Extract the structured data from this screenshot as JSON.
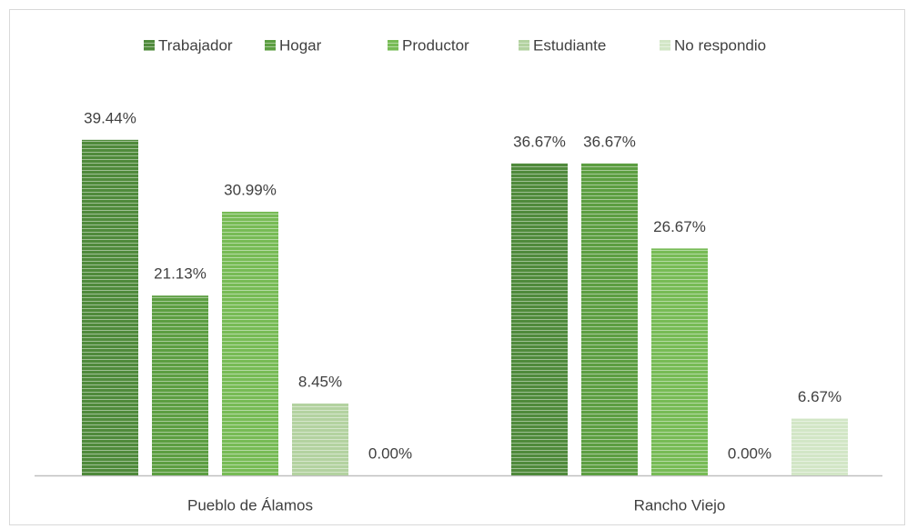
{
  "chart_data": {
    "type": "bar",
    "categories": [
      "Pueblo de Álamos",
      "Rancho Viejo"
    ],
    "series": [
      {
        "name": "Trabajador",
        "color": "#4f8a3b",
        "values": [
          39.44,
          36.67
        ],
        "value_labels": [
          "39.44%",
          "36.67%"
        ]
      },
      {
        "name": "Hogar",
        "color": "#5c9e41",
        "values": [
          21.13,
          36.67
        ],
        "value_labels": [
          "21.13%",
          "36.67%"
        ]
      },
      {
        "name": "Productor",
        "color": "#77bb55",
        "values": [
          30.99,
          26.67
        ],
        "value_labels": [
          "30.99%",
          "26.67%"
        ]
      },
      {
        "name": "Estudiante",
        "color": "#b3d2a0",
        "values": [
          8.45,
          0.0
        ],
        "value_labels": [
          "8.45%",
          "0.00%"
        ]
      },
      {
        "name": "No respondio",
        "color": "#d2e6c6",
        "values": [
          0.0,
          6.67
        ],
        "value_labels": [
          "0.00%",
          "6.67%"
        ]
      }
    ],
    "legend": "top"
  }
}
